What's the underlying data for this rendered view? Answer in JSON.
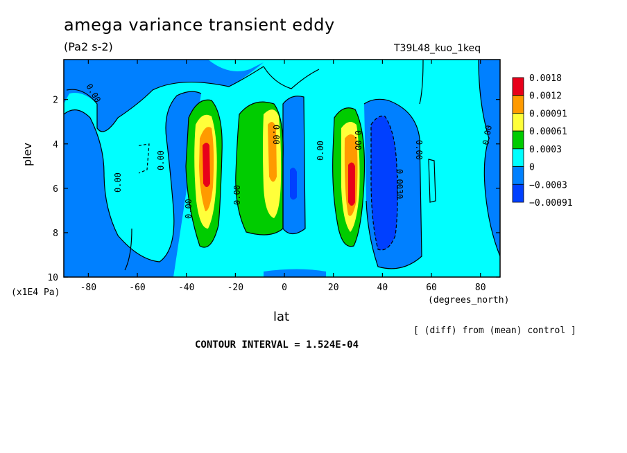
{
  "title": "amega variance transient eddy",
  "units": "(Pa2 s-2)",
  "run": "T39L48_kuo_1keq",
  "ylabel": "plev",
  "yunits": "(x1E4 Pa)",
  "xlabel": "lat",
  "xunits": "(degrees_north)",
  "note": "[ (diff) from (mean) control ]",
  "interval": "CONTOUR INTERVAL = 1.524E-04",
  "chart_data": {
    "type": "heatmap",
    "xlim": [
      -90,
      88
    ],
    "ylim": [
      10,
      0.2
    ],
    "xticks": [
      "-80",
      "-60",
      "-40",
      "-20",
      "0",
      "20",
      "40",
      "60",
      "80"
    ],
    "yticks": [
      "2",
      "4",
      "6",
      "8",
      "10"
    ],
    "colorbar": {
      "labels": [
        "0.0018",
        "0.0012",
        "0.00091",
        "0.00061",
        "0.0003",
        "0",
        "−0.0003",
        "−0.00091"
      ],
      "colors": [
        "#e8001a",
        "#ff9a00",
        "#ffff3a",
        "#00cc00",
        "#00ffff",
        "#0080ff",
        "#0040ff"
      ]
    },
    "contour_labels": [
      "0.00",
      "0.00",
      "0.00",
      "0.00",
      "0.00",
      "0.00",
      "0.00",
      "0.00",
      "0.00",
      "0.0030",
      "0.00"
    ],
    "cells": [
      {
        "lat": -30,
        "plev": 5.0,
        "level": 5
      },
      {
        "lat": -4,
        "plev": 5.2,
        "level": 3
      },
      {
        "lat": 28,
        "plev": 6.0,
        "level": 5
      },
      {
        "lat": 44,
        "plev": 5.5,
        "level": -2
      }
    ]
  }
}
